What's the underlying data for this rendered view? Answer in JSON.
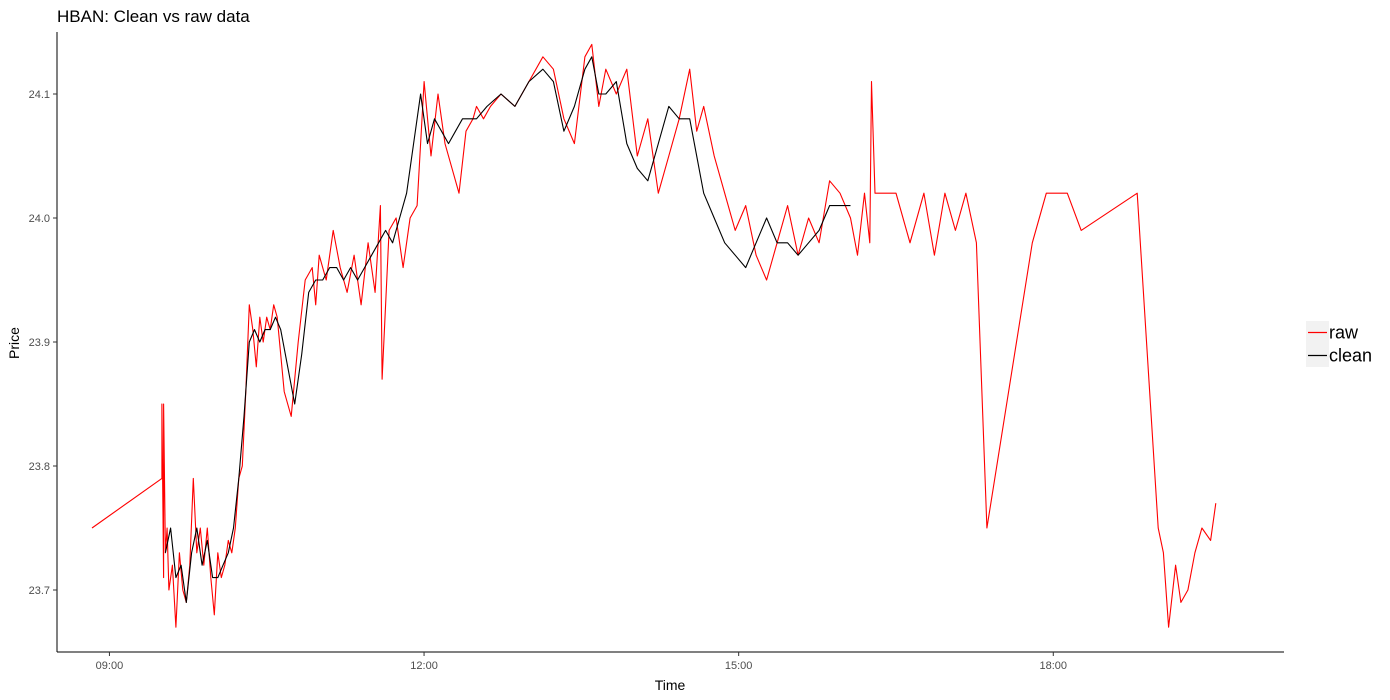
{
  "chart_data": {
    "type": "line",
    "title": "HBAN: Clean vs raw data",
    "xlabel": "Time",
    "ylabel": "Price",
    "x_ticks": [
      "09:00",
      "12:00",
      "15:00",
      "18:00"
    ],
    "x_tick_hours": [
      9,
      12,
      15,
      18
    ],
    "xlim_hours": [
      8.5,
      20.2
    ],
    "y_ticks": [
      "23.7",
      "23.8",
      "23.9",
      "24.0",
      "24.1"
    ],
    "y_tick_values": [
      23.7,
      23.8,
      23.9,
      24.0,
      24.1
    ],
    "ylim": [
      23.65,
      24.15
    ],
    "grid": false,
    "legend_position": "right",
    "series": [
      {
        "name": "raw",
        "color": "#ff0000",
        "x": [
          "08:50",
          "09:30",
          "09:30",
          "09:31",
          "09:31",
          "09:32",
          "09:33",
          "09:34",
          "09:36",
          "09:38",
          "09:40",
          "09:42",
          "09:44",
          "09:46",
          "09:48",
          "09:50",
          "09:52",
          "09:54",
          "09:56",
          "09:58",
          "10:00",
          "10:02",
          "10:04",
          "10:06",
          "10:08",
          "10:10",
          "10:12",
          "10:14",
          "10:16",
          "10:18",
          "10:20",
          "10:22",
          "10:24",
          "10:26",
          "10:28",
          "10:30",
          "10:32",
          "10:34",
          "10:36",
          "10:40",
          "10:44",
          "10:48",
          "10:52",
          "10:56",
          "10:58",
          "11:00",
          "11:04",
          "11:08",
          "11:12",
          "11:16",
          "11:20",
          "11:24",
          "11:28",
          "11:32",
          "11:35",
          "11:36",
          "11:40",
          "11:44",
          "11:48",
          "11:52",
          "11:56",
          "12:00",
          "12:04",
          "12:08",
          "12:12",
          "12:16",
          "12:20",
          "12:24",
          "12:28",
          "12:30",
          "12:34",
          "12:38",
          "12:44",
          "12:52",
          "13:00",
          "13:08",
          "13:14",
          "13:20",
          "13:26",
          "13:32",
          "13:36",
          "13:40",
          "13:44",
          "13:50",
          "13:56",
          "14:02",
          "14:08",
          "14:14",
          "14:20",
          "14:26",
          "14:32",
          "14:36",
          "14:40",
          "14:46",
          "14:52",
          "14:58",
          "15:04",
          "15:10",
          "15:16",
          "15:22",
          "15:28",
          "15:34",
          "15:40",
          "15:46",
          "15:52",
          "15:58",
          "16:04",
          "16:08",
          "16:12",
          "16:15",
          "16:16",
          "16:18",
          "16:30",
          "16:38",
          "16:46",
          "16:52",
          "16:58",
          "17:04",
          "17:10",
          "17:16",
          "17:22",
          "17:48",
          "17:56",
          "18:08",
          "18:16",
          "18:48",
          "19:00",
          "19:03",
          "19:06",
          "19:10",
          "19:13",
          "19:17",
          "19:21",
          "19:25",
          "19:30",
          "19:33"
        ],
        "y": [
          23.75,
          23.79,
          23.85,
          23.71,
          23.85,
          23.73,
          23.75,
          23.7,
          23.72,
          23.67,
          23.73,
          23.7,
          23.69,
          23.72,
          23.79,
          23.73,
          23.75,
          23.72,
          23.75,
          23.71,
          23.68,
          23.73,
          23.71,
          23.72,
          23.74,
          23.73,
          23.75,
          23.79,
          23.8,
          23.86,
          23.93,
          23.91,
          23.88,
          23.92,
          23.9,
          23.92,
          23.91,
          23.93,
          23.92,
          23.86,
          23.84,
          23.9,
          23.95,
          23.96,
          23.93,
          23.97,
          23.95,
          23.99,
          23.96,
          23.94,
          23.97,
          23.93,
          23.98,
          23.94,
          24.01,
          23.87,
          23.99,
          24.0,
          23.96,
          24.0,
          24.01,
          24.11,
          24.05,
          24.1,
          24.06,
          24.04,
          24.02,
          24.07,
          24.08,
          24.09,
          24.08,
          24.09,
          24.1,
          24.09,
          24.11,
          24.13,
          24.12,
          24.08,
          24.06,
          24.13,
          24.14,
          24.09,
          24.12,
          24.1,
          24.12,
          24.05,
          24.08,
          24.02,
          24.05,
          24.08,
          24.12,
          24.07,
          24.09,
          24.05,
          24.02,
          23.99,
          24.01,
          23.97,
          23.95,
          23.98,
          24.01,
          23.97,
          24.0,
          23.98,
          24.03,
          24.02,
          24.0,
          23.97,
          24.02,
          23.98,
          24.11,
          24.02,
          24.02,
          23.98,
          24.02,
          23.97,
          24.02,
          23.99,
          24.02,
          23.98,
          23.75,
          23.98,
          24.02,
          24.02,
          23.99,
          24.02,
          23.75,
          23.73,
          23.67,
          23.72,
          23.69,
          23.7,
          23.73,
          23.75,
          23.74,
          23.77
        ]
      },
      {
        "name": "clean",
        "color": "#000000",
        "x": [
          "09:32",
          "09:35",
          "09:38",
          "09:41",
          "09:44",
          "09:47",
          "09:50",
          "09:53",
          "09:56",
          "09:59",
          "10:02",
          "10:05",
          "10:08",
          "10:11",
          "10:14",
          "10:17",
          "10:20",
          "10:23",
          "10:26",
          "10:29",
          "10:32",
          "10:35",
          "10:38",
          "10:42",
          "10:46",
          "10:50",
          "10:54",
          "10:58",
          "11:02",
          "11:06",
          "11:10",
          "11:14",
          "11:18",
          "11:22",
          "11:26",
          "11:30",
          "11:34",
          "11:38",
          "11:42",
          "11:46",
          "11:50",
          "11:54",
          "11:58",
          "12:02",
          "12:06",
          "12:10",
          "12:14",
          "12:18",
          "12:22",
          "12:26",
          "12:30",
          "12:36",
          "12:44",
          "12:52",
          "13:00",
          "13:08",
          "13:14",
          "13:20",
          "13:26",
          "13:32",
          "13:36",
          "13:40",
          "13:44",
          "13:50",
          "13:56",
          "14:02",
          "14:08",
          "14:14",
          "14:20",
          "14:26",
          "14:32",
          "14:36",
          "14:40",
          "14:46",
          "14:52",
          "14:58",
          "15:04",
          "15:10",
          "15:16",
          "15:22",
          "15:28",
          "15:34",
          "15:40",
          "15:46",
          "15:52",
          "15:58",
          "16:04"
        ],
        "y": [
          23.73,
          23.75,
          23.71,
          23.72,
          23.69,
          23.73,
          23.75,
          23.72,
          23.74,
          23.71,
          23.71,
          23.72,
          23.73,
          23.75,
          23.79,
          23.84,
          23.9,
          23.91,
          23.9,
          23.91,
          23.91,
          23.92,
          23.91,
          23.88,
          23.85,
          23.89,
          23.94,
          23.95,
          23.95,
          23.96,
          23.96,
          23.95,
          23.96,
          23.95,
          23.96,
          23.97,
          23.98,
          23.99,
          23.98,
          24.0,
          24.02,
          24.06,
          24.1,
          24.06,
          24.08,
          24.07,
          24.06,
          24.07,
          24.08,
          24.08,
          24.08,
          24.09,
          24.1,
          24.09,
          24.11,
          24.12,
          24.11,
          24.07,
          24.09,
          24.12,
          24.13,
          24.1,
          24.1,
          24.11,
          24.06,
          24.04,
          24.03,
          24.06,
          24.09,
          24.08,
          24.08,
          24.05,
          24.02,
          24.0,
          23.98,
          23.97,
          23.96,
          23.98,
          24.0,
          23.98,
          23.98,
          23.97,
          23.98,
          23.99,
          24.01,
          24.01,
          24.01
        ]
      }
    ]
  }
}
